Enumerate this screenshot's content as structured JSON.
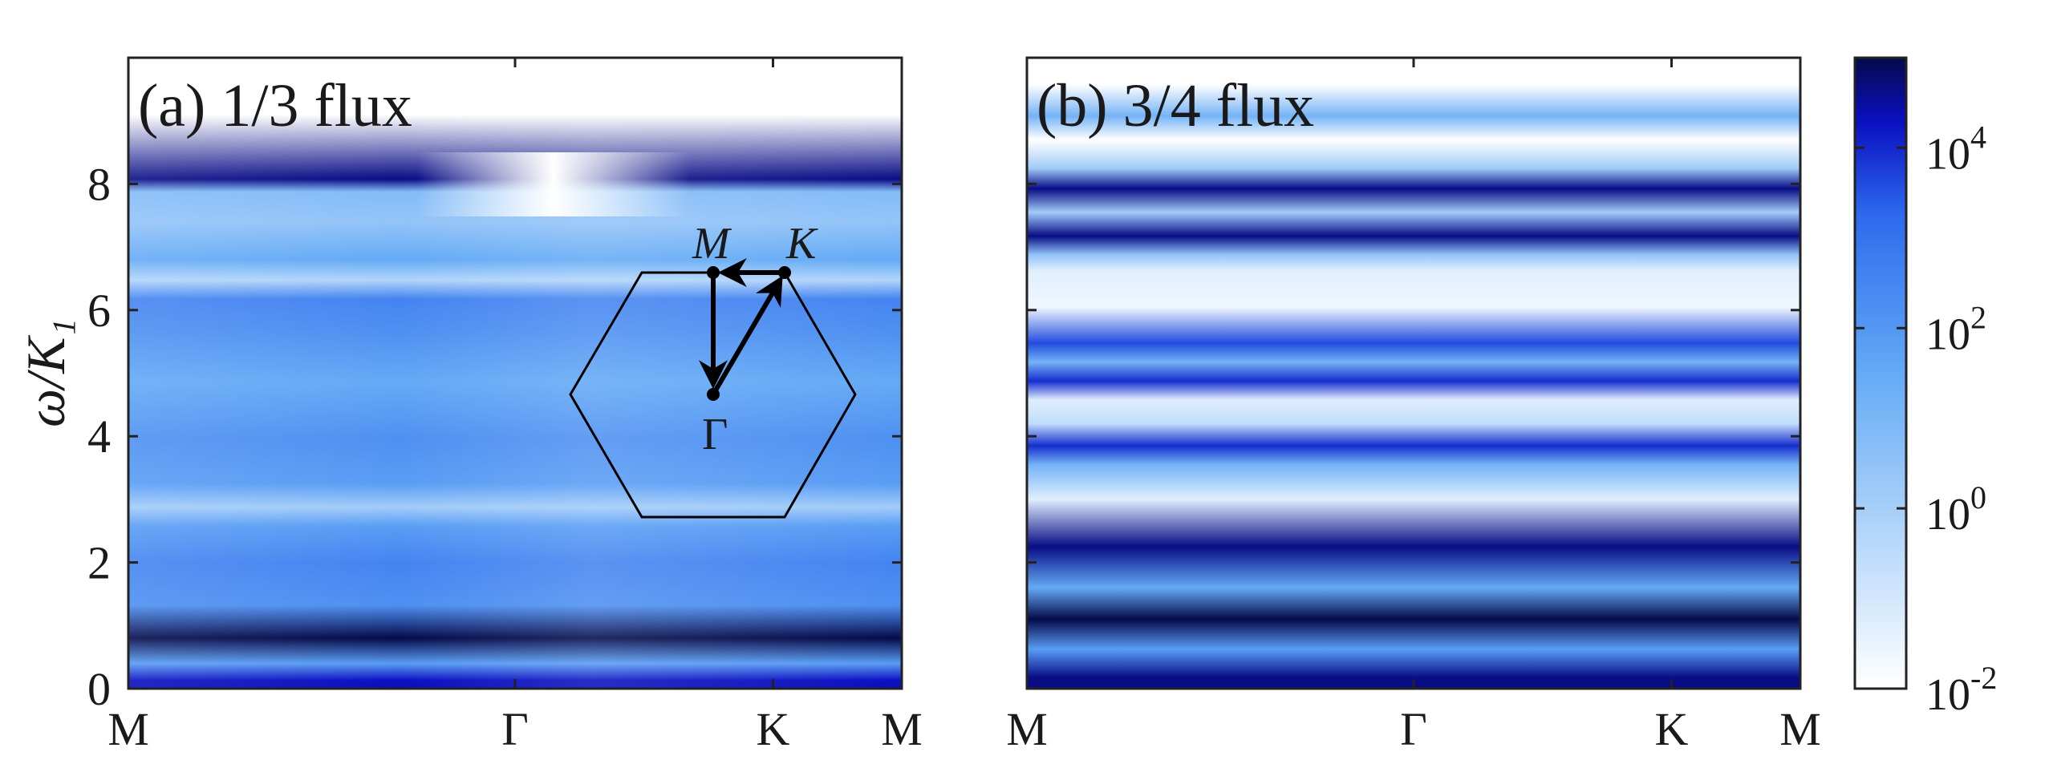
{
  "chart_data": [
    {
      "type": "heatmap",
      "title": "(a) 1/3 flux",
      "xlabel": "",
      "ylabel": "ω/K₁",
      "x_tick_labels": [
        "M",
        "Γ",
        "K",
        "M"
      ],
      "x_tick_positions": [
        0,
        1.0,
        1.667,
        2.0
      ],
      "xlim": [
        0,
        2.0
      ],
      "ylim": [
        0,
        10
      ],
      "y_ticks": [
        0,
        2,
        4,
        6,
        8
      ],
      "y_tick_labels": [
        "0",
        "2",
        "4",
        "6",
        "8"
      ],
      "color_scale": "log",
      "bands": [
        {
          "y0": 0.0,
          "y1": 0.25,
          "level": 0.9
        },
        {
          "y0": 0.25,
          "y1": 0.55,
          "level": 0.55
        },
        {
          "y0": 0.55,
          "y1": 1.05,
          "level": 1.0
        },
        {
          "y0": 1.05,
          "y1": 1.6,
          "level": 0.6
        },
        {
          "y0": 1.6,
          "y1": 2.4,
          "level": 0.65
        },
        {
          "y0": 2.4,
          "y1": 2.75,
          "level": 0.55
        },
        {
          "y0": 2.75,
          "y1": 3.0,
          "level": 0.3
        },
        {
          "y0": 3.0,
          "y1": 3.5,
          "level": 0.55
        },
        {
          "y0": 3.5,
          "y1": 4.4,
          "level": 0.6
        },
        {
          "y0": 4.4,
          "y1": 5.3,
          "level": 0.5
        },
        {
          "y0": 5.3,
          "y1": 6.0,
          "level": 0.6
        },
        {
          "y0": 6.0,
          "y1": 6.35,
          "level": 0.65
        },
        {
          "y0": 6.35,
          "y1": 6.6,
          "level": 0.25
        },
        {
          "y0": 6.6,
          "y1": 7.0,
          "level": 0.5
        },
        {
          "y0": 7.0,
          "y1": 7.8,
          "level": 0.35
        },
        {
          "y0": 7.8,
          "y1": 7.95,
          "level": 0.4
        },
        {
          "y0": 7.95,
          "y1": 8.2,
          "level": 0.95
        },
        {
          "y0": 8.2,
          "y1": 10.0,
          "level": 0.0
        }
      ],
      "annotations": [
        {
          "text": "M",
          "italic": true
        },
        {
          "text": "K",
          "italic": true
        },
        {
          "text": "Γ",
          "italic": false
        }
      ]
    },
    {
      "type": "heatmap",
      "title": "(b) 3/4 flux",
      "xlabel": "",
      "ylabel": "",
      "x_tick_labels": [
        "M",
        "Γ",
        "K",
        "M"
      ],
      "x_tick_positions": [
        0,
        1.0,
        1.667,
        2.0
      ],
      "xlim": [
        0,
        2.0
      ],
      "ylim": [
        0,
        10
      ],
      "y_ticks": [
        0,
        2,
        4,
        6,
        8
      ],
      "color_scale": "log",
      "bands": [
        {
          "y0": 0.0,
          "y1": 0.35,
          "level": 0.95
        },
        {
          "y0": 0.35,
          "y1": 0.9,
          "level": 0.55
        },
        {
          "y0": 0.9,
          "y1": 1.3,
          "level": 1.0
        },
        {
          "y0": 1.3,
          "y1": 1.9,
          "level": 0.5
        },
        {
          "y0": 1.9,
          "y1": 2.6,
          "level": 0.95
        },
        {
          "y0": 2.6,
          "y1": 3.4,
          "level": 0.1
        },
        {
          "y0": 3.4,
          "y1": 3.7,
          "level": 0.45
        },
        {
          "y0": 3.7,
          "y1": 4.0,
          "level": 0.85
        },
        {
          "y0": 4.0,
          "y1": 4.4,
          "level": 0.2
        },
        {
          "y0": 4.4,
          "y1": 4.75,
          "level": 0.1
        },
        {
          "y0": 4.75,
          "y1": 5.0,
          "level": 0.85
        },
        {
          "y0": 5.0,
          "y1": 5.35,
          "level": 0.45
        },
        {
          "y0": 5.35,
          "y1": 5.6,
          "level": 0.8
        },
        {
          "y0": 5.6,
          "y1": 6.5,
          "level": 0.05
        },
        {
          "y0": 6.5,
          "y1": 6.75,
          "level": 0.1
        },
        {
          "y0": 6.75,
          "y1": 7.0,
          "level": 0.35
        },
        {
          "y0": 7.0,
          "y1": 7.35,
          "level": 0.95
        },
        {
          "y0": 7.35,
          "y1": 7.75,
          "level": 0.3
        },
        {
          "y0": 7.75,
          "y1": 8.1,
          "level": 0.95
        },
        {
          "y0": 8.1,
          "y1": 8.4,
          "level": 0.3
        },
        {
          "y0": 8.4,
          "y1": 9.0,
          "level": 0.0
        },
        {
          "y0": 9.0,
          "y1": 9.15,
          "level": 0.45
        },
        {
          "y0": 9.15,
          "y1": 10.0,
          "level": 0.0
        }
      ]
    }
  ],
  "colorbar": {
    "scale": "log",
    "range": [
      0.01,
      100000
    ],
    "tick_labels": [
      {
        "base": "10",
        "exp": "4",
        "value": 10000
      },
      {
        "base": "10",
        "exp": "2",
        "value": 100
      },
      {
        "base": "10",
        "exp": "0",
        "value": 1
      },
      {
        "base": "10",
        "exp": "-2",
        "value": 0.01
      }
    ]
  },
  "colors": {
    "white": "#ffffff",
    "light": "#64aaf5",
    "mid": "#2e6aee",
    "dark": "#0a0fc0",
    "darkest": "#050a4a",
    "axis": "#222222"
  }
}
